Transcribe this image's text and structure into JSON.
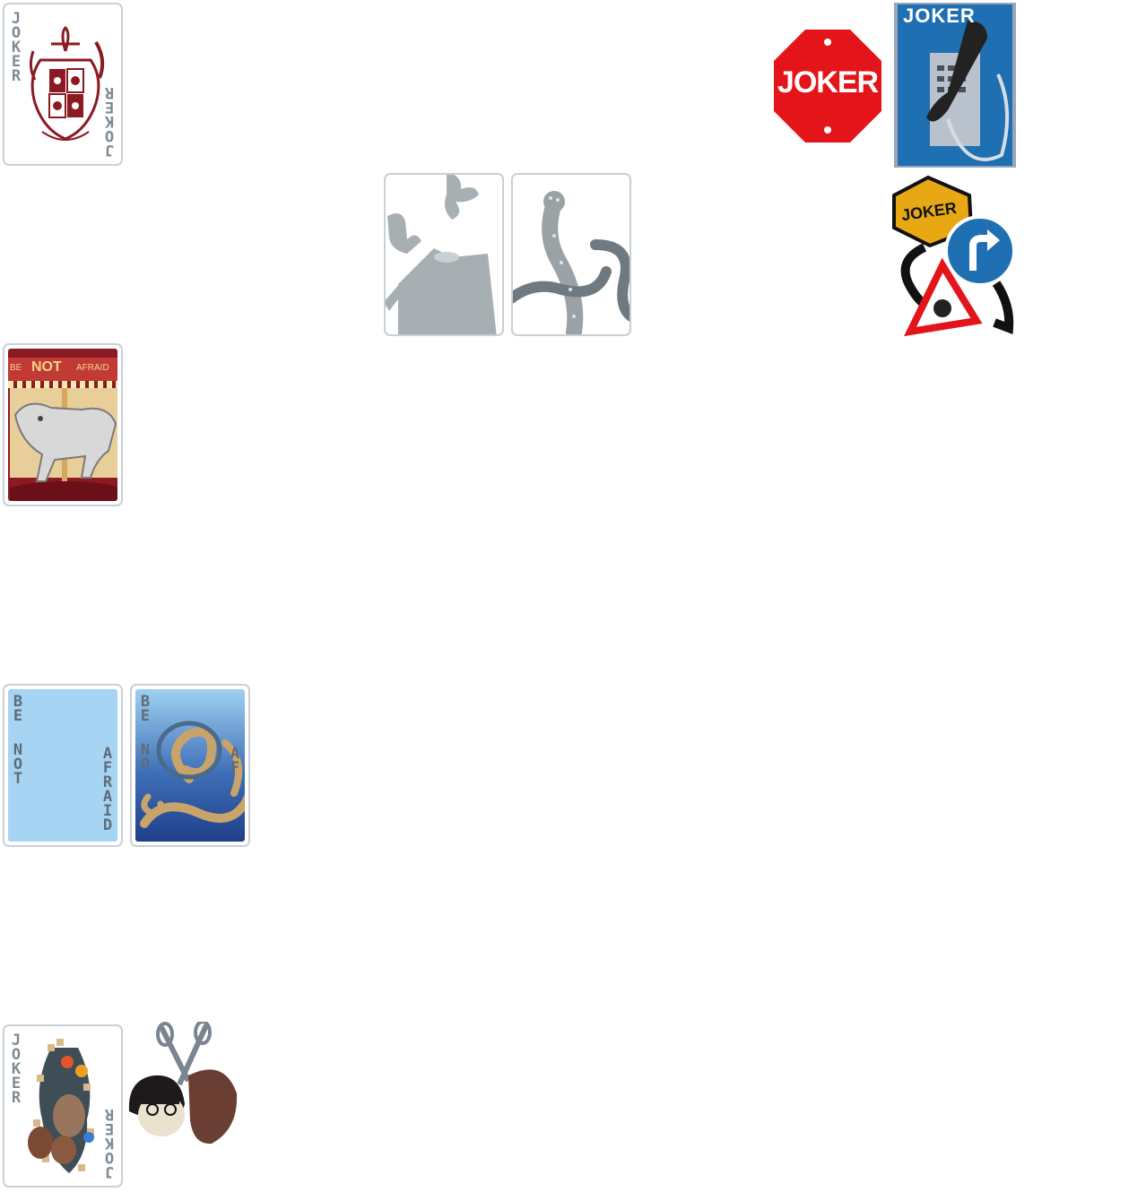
{
  "cards": {
    "crest_joker": {
      "top_text": "JOKER",
      "bottom_text": "JOKER",
      "accent": "#8b1a22"
    },
    "carousel": {
      "banner_left": "BE",
      "banner_mid": "NOT",
      "banner_right": "AFRAID",
      "accent": "#8b1a22"
    },
    "be_not_afraid_plain": {
      "word_be": "BE",
      "word_not": "NOT",
      "word_afraid": "AFRAID",
      "bg": "#a6d4f2"
    },
    "be_not_afraid_tentacle": {
      "word_be": "BE",
      "word_not": "NO",
      "word_afraid": "AF",
      "bg": "#1f3f8a"
    },
    "jester_joker": {
      "top_text": "JOKER",
      "bottom_text": "JOKER"
    }
  },
  "stickers": {
    "stop_sign": {
      "text": "JOKER",
      "color": "#e3151b"
    },
    "payphone": {
      "text": "JOKER",
      "color": "#1f6fb3"
    },
    "road_signs": {
      "text": "JOKER",
      "color": "#e7a813"
    }
  },
  "icons": [
    "crest-icon",
    "carousel-horse-icon",
    "stop-sign-icon",
    "payphone-icon",
    "road-signs-icon",
    "ghost-hand-icon",
    "ghost-tentacle-icon",
    "tentacle-icon",
    "jester-icon",
    "scissors-girl-icon"
  ]
}
